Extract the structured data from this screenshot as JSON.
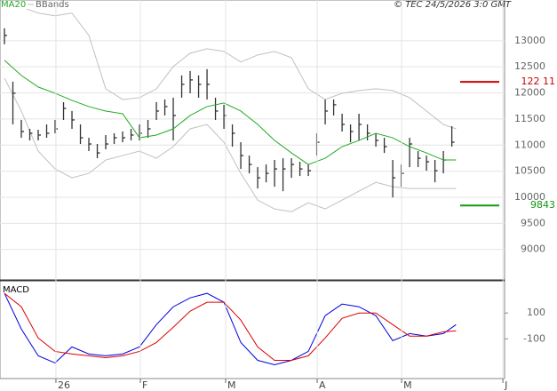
{
  "chart_data": [
    {
      "type": "ohlc",
      "annotation": "© TEC 24/5/2026 3:0 GMT",
      "xlim": [
        0,
        118.5
      ],
      "xticks": [
        {
          "value": 12.2,
          "label": "26"
        },
        {
          "value": 32.2,
          "label": "F"
        },
        {
          "value": 52.4,
          "label": "M"
        },
        {
          "value": 74.1,
          "label": "A"
        },
        {
          "value": 94.1,
          "label": "M"
        },
        {
          "value": 118.1,
          "label": "J"
        }
      ],
      "ylim": [
        8450,
        13610
      ],
      "yticks": [
        13000,
        12500,
        12000,
        11500,
        11000,
        10500,
        10000,
        9500,
        9000
      ],
      "grid": true,
      "bar_color": "#333333",
      "x": [
        0,
        2,
        4,
        6,
        8,
        10,
        12,
        14,
        16,
        18,
        20,
        22,
        24,
        26,
        28,
        30,
        32,
        34,
        36,
        38,
        40,
        42,
        44,
        46,
        48,
        50,
        52,
        54,
        56,
        58,
        60,
        62,
        64,
        66,
        68,
        70,
        72,
        74,
        76,
        78,
        80,
        82,
        84,
        86,
        88,
        90,
        92,
        94,
        96,
        98,
        100,
        102,
        104,
        106
      ],
      "high": [
        13239,
        12215,
        11482,
        11311,
        11294,
        11396,
        11482,
        11823,
        11652,
        11396,
        11140,
        11021,
        11192,
        11226,
        11260,
        11311,
        11396,
        11482,
        11823,
        11874,
        11908,
        12335,
        12420,
        12335,
        12454,
        11908,
        11772,
        11396,
        11055,
        10799,
        10577,
        10629,
        10714,
        10748,
        10748,
        10680,
        10629,
        11226,
        11874,
        11874,
        11601,
        11396,
        11601,
        11396,
        11226,
        11140,
        10714,
        10629,
        11140,
        10885,
        10799,
        10714,
        10885,
        11362
      ],
      "low": [
        12932,
        11396,
        11140,
        11089,
        11089,
        11140,
        11226,
        11482,
        11311,
        11021,
        10885,
        10748,
        10919,
        11021,
        11055,
        11089,
        11089,
        11140,
        11482,
        11567,
        11089,
        11908,
        11993,
        11908,
        11874,
        11482,
        11311,
        10970,
        10543,
        10458,
        10168,
        10287,
        10202,
        10117,
        10373,
        10407,
        10407,
        10799,
        11396,
        11567,
        11260,
        11055,
        11089,
        11089,
        10970,
        10850,
        9997,
        10202,
        10577,
        10577,
        10509,
        10287,
        10458,
        10970
      ],
      "close": [
        13102,
        11993,
        11260,
        11226,
        11192,
        11226,
        11311,
        11703,
        11482,
        11140,
        11021,
        10850,
        11021,
        11140,
        11140,
        11192,
        11226,
        11311,
        11652,
        11738,
        11567,
        12164,
        12249,
        12164,
        12164,
        11652,
        11567,
        11226,
        10799,
        10629,
        10373,
        10458,
        10543,
        10543,
        10629,
        10543,
        10509,
        11055,
        11652,
        11772,
        11396,
        11260,
        11396,
        11226,
        11089,
        10970,
        10373,
        10458,
        11021,
        10748,
        10680,
        10509,
        10714,
        11055
      ],
      "line_x": [
        0,
        4,
        8,
        12,
        16,
        20,
        24,
        28,
        32,
        36,
        40,
        44,
        48,
        52,
        56,
        60,
        64,
        68,
        72,
        76,
        80,
        84,
        88,
        92,
        96,
        100,
        104,
        107
      ],
      "ma": {
        "name": "MA20",
        "color": "#22aa22",
        "values": [
          12625,
          12335,
          12113,
          11993,
          11857,
          11738,
          11652,
          11601,
          11140,
          11192,
          11311,
          11567,
          11738,
          11806,
          11652,
          11396,
          11089,
          10850,
          10629,
          10748,
          10970,
          11089,
          11226,
          11140,
          10970,
          10850,
          10714,
          10714
        ]
      },
      "bands": {
        "name": "BBands",
        "color": "#c0c0c0",
        "upper": [
          13699,
          13648,
          13529,
          13478,
          13529,
          13102,
          12079,
          11874,
          11908,
          12079,
          12505,
          12761,
          12846,
          12795,
          12591,
          12727,
          12795,
          12676,
          12079,
          11874,
          11993,
          12045,
          12079,
          12045,
          11908,
          11652,
          11396,
          11311
        ],
        "lower": [
          12283,
          11652,
          10885,
          10543,
          10373,
          10458,
          10714,
          10799,
          10885,
          10748,
          10970,
          11311,
          11396,
          11055,
          10458,
          9946,
          9776,
          9724,
          9895,
          9776,
          9946,
          10117,
          10287,
          10202,
          10168,
          10168,
          10168,
          10168
        ]
      },
      "levels": [
        {
          "value": 12211,
          "label": "122 11",
          "color": "#cc0000"
        },
        {
          "value": 9843,
          "label": "9843",
          "color": "#119911"
        }
      ]
    },
    {
      "type": "macd",
      "title": "MACD",
      "ylim": [
        -400,
        335
      ],
      "yticks": [
        100,
        -100
      ],
      "x": [
        0,
        4,
        8,
        12,
        16,
        20,
        24,
        28,
        32,
        36,
        40,
        44,
        48,
        52,
        56,
        60,
        64,
        68,
        72,
        76,
        80,
        84,
        88,
        92,
        96,
        100,
        104,
        107
      ],
      "series": [
        {
          "color": "#0000dd",
          "values": [
            252,
            -24,
            -231,
            -286,
            -162,
            -217,
            -231,
            -217,
            -162,
            10,
            148,
            217,
            252,
            183,
            -128,
            -266,
            -300,
            -266,
            -197,
            79,
            169,
            148,
            79,
            -114,
            -59,
            -79,
            -59,
            10
          ]
        },
        {
          "color": "#dd0000",
          "values": [
            252,
            148,
            -93,
            -197,
            -217,
            -231,
            -245,
            -231,
            -197,
            -128,
            -10,
            114,
            183,
            183,
            45,
            -162,
            -266,
            -266,
            -231,
            -93,
            59,
            100,
            100,
            10,
            -79,
            -79,
            -45,
            -38
          ]
        }
      ]
    }
  ]
}
